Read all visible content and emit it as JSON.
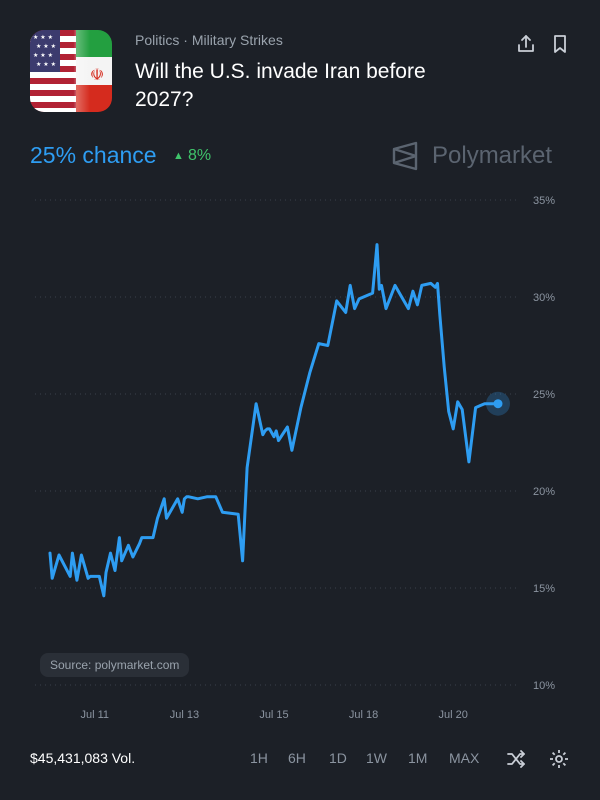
{
  "header": {
    "breadcrumb": [
      "Politics",
      "·",
      "Military Strikes"
    ],
    "title": "Will the U.S. invade Iran before 2027?"
  },
  "icons": {
    "market_image": "us-iran-flag-icon",
    "share": "share-icon",
    "bookmark": "bookmark-icon",
    "brand_logo": "polymarket-logo-icon",
    "shuffle": "shuffle-icon",
    "settings": "gear-icon"
  },
  "summary": {
    "chance": "25% chance",
    "delta": "8%",
    "delta_direction": "up",
    "brand": "Polymarket"
  },
  "source": "Source: polymarket.com",
  "footer": {
    "volume": "$45,431,083 Vol.",
    "ranges": [
      "1H",
      "6H",
      "1D",
      "1W",
      "1M",
      "MAX"
    ]
  },
  "colors": {
    "background": "#1c2027",
    "accent": "#2e9df2",
    "positive": "#3fc46b",
    "muted": "#8b94a0"
  },
  "chart_data": {
    "type": "line",
    "series": [
      {
        "x": [
          10.0,
          10.05,
          10.2,
          10.45,
          10.5,
          10.6,
          10.7,
          10.85,
          10.9,
          11.1,
          11.2,
          11.25,
          11.35,
          11.45,
          11.55,
          11.6,
          11.75,
          11.85,
          12.0,
          12.05,
          12.3,
          12.4,
          12.55,
          12.6,
          12.85,
          12.95,
          13.0,
          13.05,
          13.1,
          13.3,
          13.5,
          13.7,
          13.85,
          14.2,
          14.3,
          14.4,
          14.6,
          14.75,
          14.8,
          14.85,
          14.9,
          15.0,
          15.05,
          15.1,
          15.3,
          15.4,
          15.6,
          15.8,
          16.0,
          16.2,
          16.4,
          16.6,
          16.7,
          16.8,
          16.9,
          17.2,
          17.3,
          17.35,
          17.4,
          17.5,
          17.7,
          18.0,
          18.1,
          18.2,
          18.3,
          18.5,
          18.6,
          18.65,
          18.7,
          18.8,
          18.9,
          19.0,
          19.1,
          19.2,
          19.35,
          19.5,
          19.6,
          19.7,
          19.75,
          19.8,
          19.85,
          19.9,
          19.95,
          20.0
        ],
        "values": [
          16.8,
          15.5,
          16.7,
          15.6,
          16.8,
          15.4,
          16.7,
          15.5,
          15.6,
          15.6,
          14.6,
          15.8,
          16.8,
          15.9,
          17.6,
          16.4,
          17.2,
          16.6,
          17.3,
          17.6,
          17.6,
          18.6,
          19.6,
          18.6,
          19.6,
          18.9,
          19.6,
          19.7,
          19.7,
          19.6,
          19.7,
          19.7,
          18.9,
          18.8,
          16.4,
          21.2,
          24.5,
          22.9,
          23.1,
          23.2,
          23.2,
          22.8,
          23.1,
          22.6,
          23.3,
          22.1,
          24.3,
          26.1,
          27.6,
          27.5,
          29.8,
          29.2,
          30.6,
          29.4,
          29.9,
          30.2,
          32.7,
          30.4,
          30.6,
          29.4,
          30.6,
          29.4,
          30.3,
          29.6,
          30.6,
          30.7,
          30.5,
          30.7,
          29.1,
          26.4,
          24.1,
          23.2,
          24.6,
          24.2,
          21.5,
          24.3,
          24.4,
          24.5,
          24.5,
          24.5,
          24.5,
          24.5,
          24.5,
          24.5
        ]
      }
    ],
    "x_ticks": [
      {
        "x": 11,
        "label": "Jul 11"
      },
      {
        "x": 13,
        "label": "Jul 13"
      },
      {
        "x": 15,
        "label": "Jul 15"
      },
      {
        "x": 17,
        "label": "Jul 18"
      },
      {
        "x": 19,
        "label": "Jul 20"
      }
    ],
    "y_ticks": [
      10,
      15,
      20,
      25,
      30,
      35
    ],
    "y_tick_labels": [
      "10%",
      "15%",
      "20%",
      "25%",
      "30%",
      "35%"
    ],
    "ylim": [
      10,
      35
    ],
    "xlim": [
      9.8,
      20.1
    ],
    "grid": "horizontal dotted",
    "y_axis_side": "right",
    "last_point_marker": true
  }
}
